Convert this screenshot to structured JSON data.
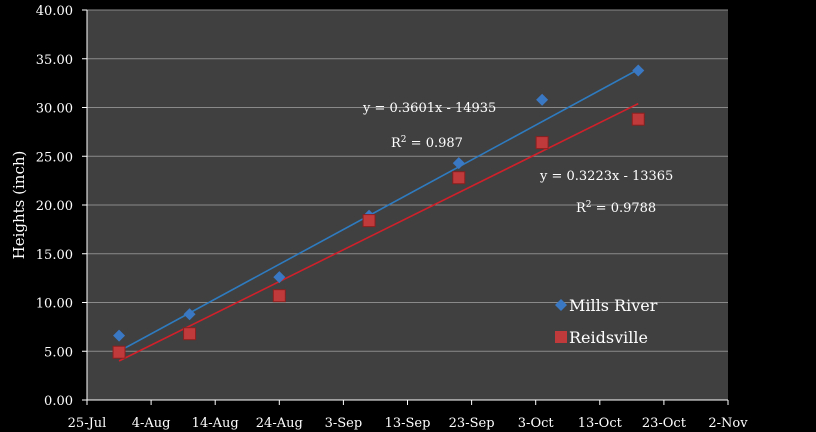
{
  "chart_data": {
    "type": "scatter",
    "title": "",
    "xlabel": "",
    "ylabel": "Heights (inch)",
    "ylim": [
      0,
      40
    ],
    "xlim_days_from_25jul": [
      0,
      100
    ],
    "x_tick_labels": [
      "25-Jul",
      "4-Aug",
      "14-Aug",
      "24-Aug",
      "3-Sep",
      "13-Sep",
      "23-Sep",
      "3-Oct",
      "13-Oct",
      "23-Oct",
      "2-Nov"
    ],
    "y_tick_labels": [
      "0.00",
      "5.00",
      "10.00",
      "15.00",
      "20.00",
      "25.00",
      "30.00",
      "35.00",
      "40.00"
    ],
    "grid": true,
    "legend_placement": "right",
    "series": [
      {
        "name": "Mills River",
        "color": "#3a78c4",
        "marker": "diamond",
        "x_days": [
          5,
          16,
          30,
          44,
          58,
          71,
          86
        ],
        "values": [
          6.6,
          8.8,
          12.6,
          18.9,
          24.3,
          30.8,
          33.8
        ],
        "trend": {
          "equation": "y = 0.3601x - 14935",
          "r2_base": "R",
          "r2_sup": "2",
          "r2_value": " = 0.987",
          "start": [
            5,
            5.0
          ],
          "end": [
            86,
            33.9
          ],
          "color": "#2e7bc0"
        }
      },
      {
        "name": "Reidsville",
        "color": "#c0393b",
        "marker": "square",
        "x_days": [
          5,
          16,
          30,
          44,
          58,
          71,
          86
        ],
        "values": [
          4.9,
          6.8,
          10.7,
          18.4,
          22.8,
          26.4,
          28.8
        ],
        "trend": {
          "equation": "y = 0.3223x - 13365",
          "r2_base": "R",
          "r2_sup": "2",
          "r2_value": " = 0.9788",
          "start": [
            5,
            4.0
          ],
          "end": [
            86,
            30.4
          ],
          "color": "#d0202a"
        }
      }
    ]
  }
}
